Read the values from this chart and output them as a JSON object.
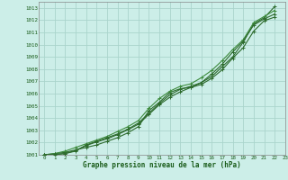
{
  "xlabel": "Graphe pression niveau de la mer (hPa)",
  "xlim": [
    -0.5,
    23
  ],
  "ylim": [
    1001,
    1013.5
  ],
  "yticks": [
    1001,
    1002,
    1003,
    1004,
    1005,
    1006,
    1007,
    1008,
    1009,
    1010,
    1011,
    1012,
    1013
  ],
  "xticks": [
    0,
    1,
    2,
    3,
    4,
    5,
    6,
    7,
    8,
    9,
    10,
    11,
    12,
    13,
    14,
    15,
    16,
    17,
    18,
    19,
    20,
    21,
    22,
    23
  ],
  "xtick_labels": [
    "0",
    "1",
    "2",
    "3",
    "4",
    "5",
    "6",
    "7",
    "8",
    "9",
    "10",
    "11",
    "12",
    "13",
    "14",
    "15",
    "16",
    "17",
    "18",
    "19",
    "20",
    "21",
    "22",
    "23"
  ],
  "background_color": "#cceee8",
  "grid_color": "#aad4cc",
  "line_color_dark": "#2d6b2d",
  "line_color_light": "#3d8b3d",
  "series": [
    [
      1001.0,
      1001.1,
      1001.2,
      1001.4,
      1001.6,
      1001.8,
      1002.1,
      1002.4,
      1002.8,
      1003.3,
      1004.6,
      1005.3,
      1006.1,
      1006.4,
      1006.5,
      1006.9,
      1007.4,
      1008.2,
      1009.0,
      1010.2,
      1011.7,
      1012.2,
      1013.1
    ],
    [
      1001.0,
      1001.1,
      1001.3,
      1001.6,
      1001.9,
      1002.2,
      1002.5,
      1002.9,
      1003.3,
      1003.8,
      1004.8,
      1005.6,
      1006.2,
      1006.6,
      1006.8,
      1007.3,
      1007.9,
      1008.7,
      1009.6,
      1010.4,
      1011.8,
      1012.3,
      1012.8
    ],
    [
      1001.0,
      1001.05,
      1001.1,
      1001.35,
      1001.75,
      1002.05,
      1002.3,
      1002.65,
      1003.05,
      1003.5,
      1004.3,
      1005.1,
      1005.7,
      1006.15,
      1006.5,
      1006.75,
      1007.25,
      1007.95,
      1008.9,
      1009.75,
      1011.1,
      1011.95,
      1012.25
    ],
    [
      1001.0,
      1001.0,
      1001.1,
      1001.3,
      1001.8,
      1002.1,
      1002.4,
      1002.7,
      1003.1,
      1003.6,
      1004.4,
      1005.2,
      1005.9,
      1006.35,
      1006.6,
      1006.9,
      1007.6,
      1008.4,
      1009.4,
      1010.3,
      1011.6,
      1012.1,
      1012.5
    ]
  ]
}
